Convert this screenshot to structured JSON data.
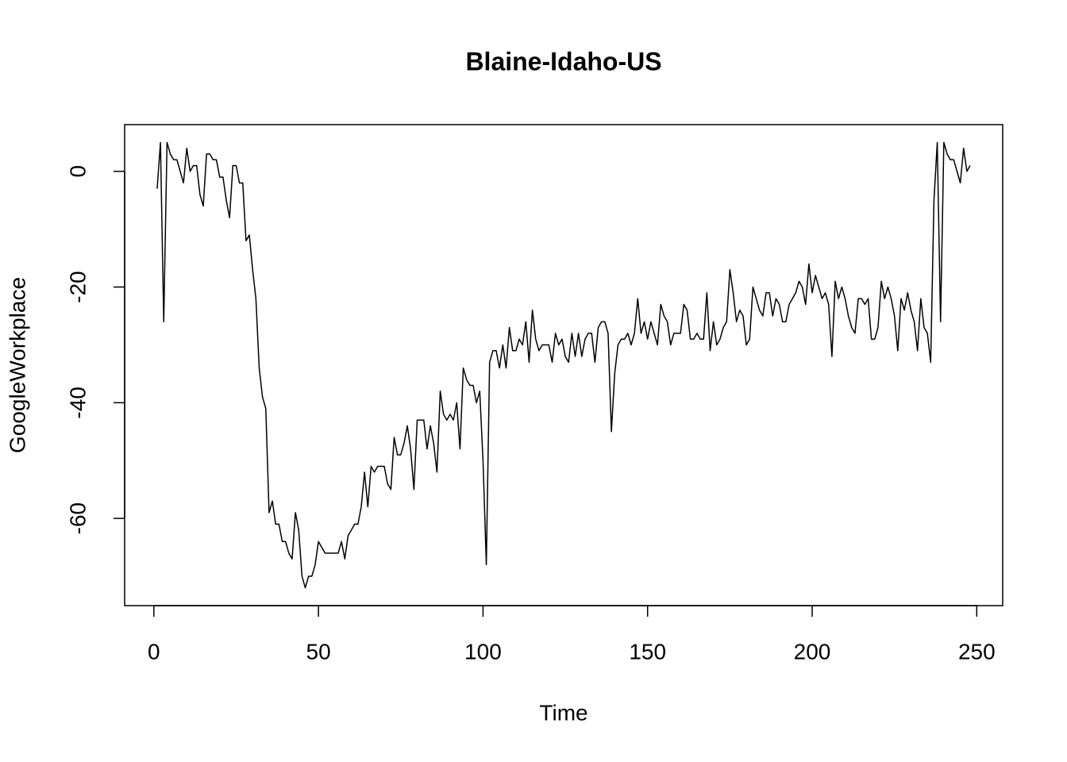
{
  "chart_data": {
    "type": "line",
    "title": "Blaine-Idaho-US",
    "x_label": "Time",
    "y_label": "GoogleWorkplace",
    "x": [
      1,
      2,
      3,
      4,
      5,
      6,
      7,
      8,
      9,
      10,
      11,
      12,
      13,
      14,
      15,
      16,
      17,
      18,
      19,
      20,
      21,
      22,
      23,
      24,
      25,
      26,
      27,
      28,
      29,
      30,
      31,
      32,
      33,
      34,
      35,
      36,
      37,
      38,
      39,
      40,
      41,
      42,
      43,
      44,
      45,
      46,
      47,
      48,
      49,
      50,
      51,
      52,
      53,
      54,
      55,
      56,
      57,
      58,
      59,
      60,
      61,
      62,
      63,
      64,
      65,
      66,
      67,
      68,
      69,
      70,
      71,
      72,
      73,
      74,
      75,
      76,
      77,
      78,
      79,
      80,
      81,
      82,
      83,
      84,
      85,
      86,
      87,
      88,
      89,
      90,
      91,
      92,
      93,
      94,
      95,
      96,
      97,
      98,
      99,
      100,
      101,
      102,
      103,
      104,
      105,
      106,
      107,
      108,
      109,
      110,
      111,
      112,
      113,
      114,
      115,
      116,
      117,
      118,
      119,
      120,
      121,
      122,
      123,
      124,
      125,
      126,
      127,
      128,
      129,
      130,
      131,
      132,
      133,
      134,
      135,
      136,
      137,
      138,
      139,
      140,
      141,
      142,
      143,
      144,
      145,
      146,
      147,
      148,
      149,
      150,
      151,
      152,
      153,
      154,
      155,
      156,
      157,
      158,
      159,
      160,
      161,
      162,
      163,
      164,
      165,
      166,
      167,
      168,
      169,
      170,
      171,
      172,
      173,
      174,
      175,
      176,
      177,
      178,
      179,
      180,
      181,
      182,
      183,
      184,
      185,
      186,
      187,
      188,
      189,
      190,
      191,
      192,
      193,
      194,
      195,
      196,
      197,
      198,
      199,
      200,
      201,
      202,
      203,
      204,
      205,
      206,
      207,
      208,
      209,
      210,
      211,
      212,
      213,
      214,
      215,
      216,
      217,
      218,
      219,
      220,
      221,
      222,
      223,
      224,
      225,
      226,
      227,
      228,
      229,
      230,
      231,
      232,
      233,
      234,
      235,
      236,
      237,
      238,
      239,
      240,
      241,
      242,
      243,
      244,
      245,
      246,
      247,
      248
    ],
    "series": [
      {
        "name": "GoogleWorkplace",
        "color": "#000000",
        "values": [
          -3,
          5,
          -26,
          5,
          3,
          2,
          2,
          0,
          -2,
          4,
          0,
          1,
          1,
          -4,
          -6,
          3,
          3,
          2,
          2,
          -1,
          -1,
          -5,
          -8,
          1,
          1,
          -2,
          -2,
          -12,
          -11,
          -17,
          -22,
          -34,
          -39,
          -41,
          -59,
          -57,
          -61,
          -61,
          -64,
          -64,
          -66,
          -67,
          -59,
          -62,
          -70,
          -72,
          -70,
          -70,
          -68,
          -64,
          -65,
          -66,
          -66,
          -66,
          -66,
          -66,
          -64,
          -67,
          -63,
          -62,
          -61,
          -61,
          -58,
          -52,
          -58,
          -51,
          -52,
          -51,
          -51,
          -51,
          -54,
          -55,
          -46,
          -49,
          -49,
          -47,
          -44,
          -48,
          -55,
          -43,
          -43,
          -43,
          -48,
          -44,
          -47,
          -52,
          -38,
          -42,
          -43,
          -42,
          -43,
          -40,
          -48,
          -34,
          -36,
          -37,
          -37,
          -40,
          -38,
          -50,
          -68,
          -33,
          -31,
          -31,
          -34,
          -30,
          -34,
          -27,
          -31,
          -31,
          -29,
          -30,
          -26,
          -33,
          -24,
          -29,
          -31,
          -30,
          -30,
          -30,
          -33,
          -28,
          -30,
          -29,
          -32,
          -33,
          -28,
          -32,
          -28,
          -32,
          -29,
          -28,
          -28,
          -33,
          -27,
          -26,
          -26,
          -28,
          -45,
          -35,
          -30,
          -29,
          -29,
          -28,
          -30,
          -28,
          -22,
          -28,
          -26,
          -29,
          -26,
          -28,
          -30,
          -23,
          -25,
          -26,
          -30,
          -28,
          -28,
          -28,
          -23,
          -24,
          -29,
          -29,
          -28,
          -29,
          -29,
          -21,
          -31,
          -26,
          -30,
          -29,
          -27,
          -26,
          -17,
          -21,
          -26,
          -24,
          -25,
          -30,
          -29,
          -20,
          -22,
          -24,
          -25,
          -21,
          -21,
          -25,
          -22,
          -23,
          -26,
          -26,
          -23,
          -22,
          -21,
          -19,
          -20,
          -23,
          -16,
          -21,
          -18,
          -20,
          -22,
          -21,
          -23,
          -32,
          -19,
          -22,
          -20,
          -22,
          -25,
          -27,
          -28,
          -22,
          -22,
          -23,
          -22,
          -29,
          -29,
          -27,
          -19,
          -22,
          -20,
          -22,
          -25,
          -31,
          -22,
          -24,
          -21,
          -24,
          -26,
          -31,
          -22,
          -27,
          -28,
          -33,
          -5,
          5,
          -26,
          5,
          3,
          2,
          2,
          0,
          -2,
          4,
          0,
          1
        ]
      }
    ],
    "xlim": [
      -8.88,
      257.88
    ],
    "xticks": [
      0,
      50,
      100,
      150,
      200,
      250
    ],
    "ylim": [
      -75.08,
      8.08
    ],
    "yticks": [
      -60,
      -40,
      -20,
      0
    ],
    "grid": false
  }
}
